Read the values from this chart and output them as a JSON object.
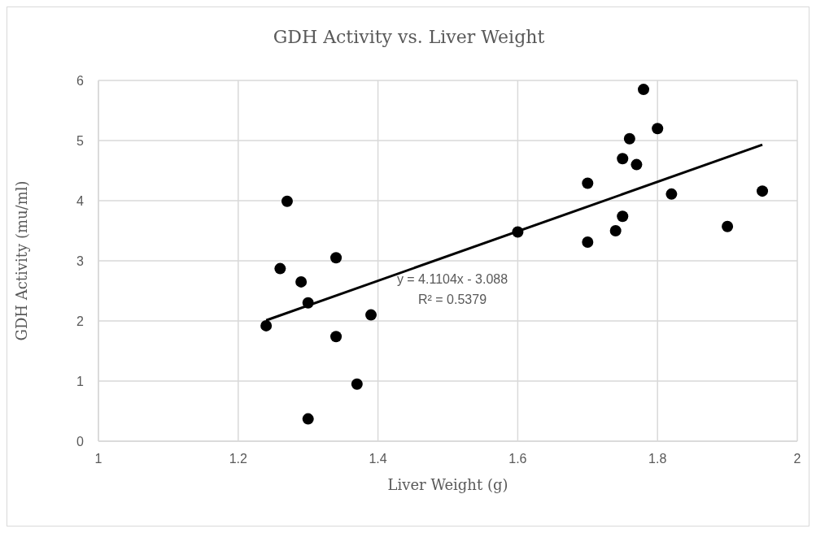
{
  "chart_data": {
    "type": "scatter",
    "title": "GDH Activity vs. Liver Weight",
    "xlabel": "Liver Weight (g)",
    "ylabel": "GDH Activity (mu/ml)",
    "series": [
      {
        "color": "#000000",
        "marker": "circle",
        "x": [
          1.24,
          1.26,
          1.27,
          1.29,
          1.3,
          1.3,
          1.34,
          1.34,
          1.37,
          1.39,
          1.6,
          1.7,
          1.7,
          1.74,
          1.75,
          1.75,
          1.76,
          1.77,
          1.78,
          1.8,
          1.82,
          1.9,
          1.95
        ],
        "values": [
          1.92,
          2.87,
          3.99,
          2.65,
          2.3,
          0.37,
          3.05,
          1.74,
          0.95,
          2.1,
          3.48,
          4.29,
          3.31,
          3.5,
          3.74,
          4.7,
          5.03,
          4.6,
          5.85,
          5.2,
          4.11,
          3.57,
          4.16
        ]
      },
      {
        "type": "line",
        "marker": "none",
        "color": "#000000",
        "x": [
          1.24,
          1.95
        ],
        "values": [
          2.01,
          4.93
        ]
      }
    ],
    "annotations": [
      "y = 4.1104x - 3.088",
      "R² = 0.5379"
    ],
    "xlim": [
      1,
      2
    ],
    "xticks": [
      1,
      1.2,
      1.4,
      1.6,
      1.8,
      2
    ],
    "ylim": [
      0,
      6
    ],
    "yticks": [
      0,
      1,
      2,
      3,
      4,
      5,
      6
    ],
    "grid": true,
    "line_style": "solid"
  }
}
